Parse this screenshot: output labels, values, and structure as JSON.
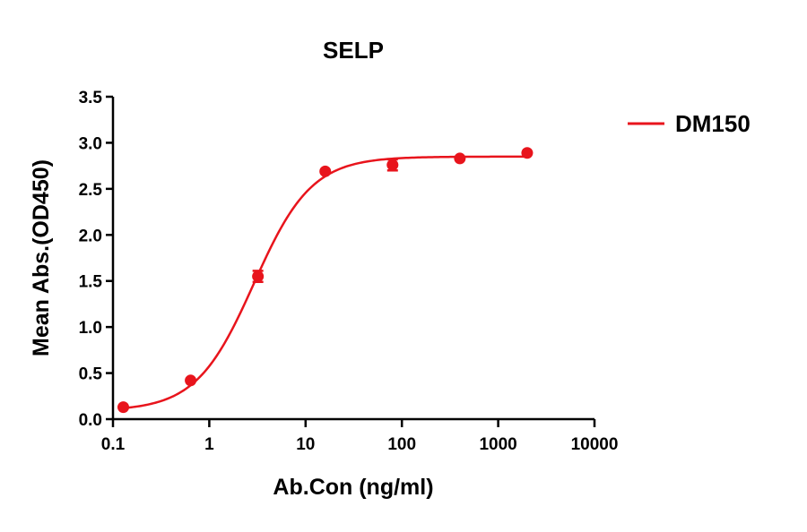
{
  "chart_data": {
    "type": "scatter",
    "title": "SELP",
    "xlabel": "Ab.Con (ng/ml)",
    "ylabel": "Mean Abs.(OD450)",
    "x_scale": "log",
    "xlim": [
      0.1,
      10000
    ],
    "ylim": [
      0,
      3.5
    ],
    "x_ticks": [
      0.1,
      1,
      10,
      100,
      1000,
      10000
    ],
    "x_tick_labels": [
      "0.1",
      "1",
      "10",
      "100",
      "1000",
      "10000"
    ],
    "y_ticks": [
      0,
      0.5,
      1,
      1.5,
      2,
      2.5,
      3,
      3.5
    ],
    "y_tick_labels": [
      "0.0",
      "0.5",
      "1.0",
      "1.5",
      "2.0",
      "2.5",
      "3.0",
      "3.5"
    ],
    "grid": false,
    "legend_position": "top-right",
    "series": [
      {
        "name": "DM150",
        "color": "#e8141c",
        "points": [
          {
            "x": 0.128,
            "y": 0.13,
            "err": 0.0
          },
          {
            "x": 0.64,
            "y": 0.42,
            "err": 0.0
          },
          {
            "x": 3.2,
            "y": 1.55,
            "err": 0.06
          },
          {
            "x": 16,
            "y": 2.69,
            "err": 0.0
          },
          {
            "x": 80,
            "y": 2.76,
            "err": 0.06
          },
          {
            "x": 400,
            "y": 2.83,
            "err": 0.0
          },
          {
            "x": 2000,
            "y": 2.89,
            "err": 0.0
          }
        ],
        "fit": {
          "model": "4PL",
          "bottom": 0.09,
          "top": 2.85,
          "ec50": 2.9,
          "hill": 1.45
        }
      }
    ]
  }
}
